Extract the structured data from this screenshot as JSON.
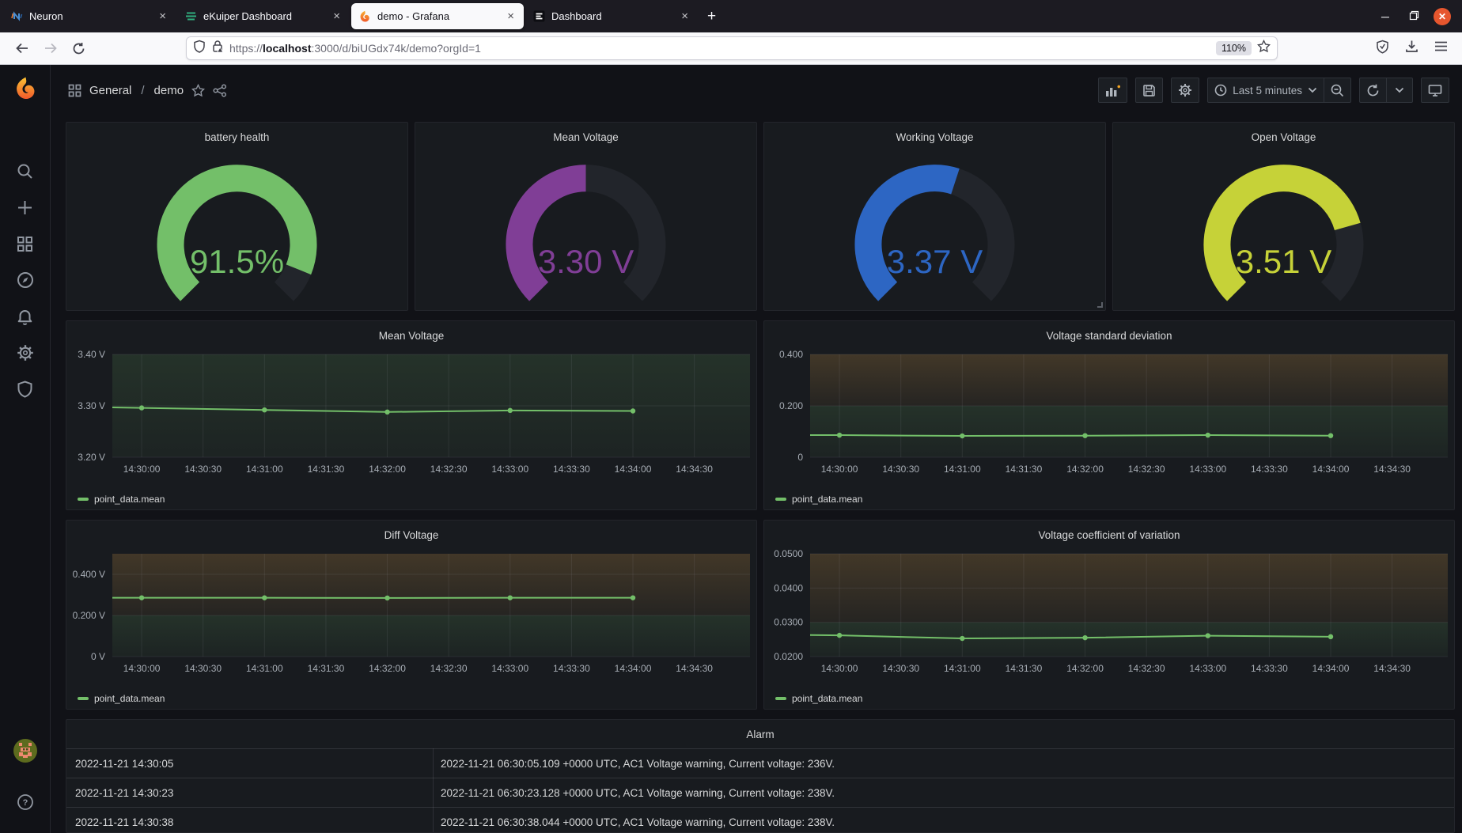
{
  "browser": {
    "tabs": [
      {
        "label": "Neuron",
        "icon": "neuron-favicon",
        "active": false
      },
      {
        "label": "eKuiper Dashboard",
        "icon": "ekuiper-favicon",
        "active": false
      },
      {
        "label": "demo - Grafana",
        "icon": "grafana-favicon",
        "active": true
      },
      {
        "label": "Dashboard",
        "icon": "dashboard-favicon",
        "active": false
      }
    ],
    "close_glyph": "×",
    "new_tab_glyph": "+",
    "url": {
      "scheme": "https://",
      "host": "localhost",
      "rest": ":3000/d/biUGdx74k/demo?orgId=1"
    },
    "zoom_badge": "110%"
  },
  "grafana": {
    "breadcrumb": {
      "folder": "General",
      "separator": "/",
      "dashboard": "demo"
    },
    "toolbar": {
      "time_range": "Last 5 minutes"
    },
    "sidebar_items": [
      "search",
      "create",
      "dashboards",
      "explore",
      "alerting",
      "configuration",
      "server-admin"
    ],
    "legend_label": "point_data.mean",
    "colors": {
      "green": "#73BF69",
      "purple": "#803E96",
      "blue": "#2D66C3",
      "yellow": "#C6D238",
      "track": "#22252b"
    }
  },
  "chart_data": [
    {
      "type": "gauge",
      "title": "battery health",
      "value": 91.5,
      "display": "91.5%",
      "min": 0,
      "max": 100,
      "color": "#73BF69"
    },
    {
      "type": "gauge",
      "title": "Mean Voltage",
      "value": 3.3,
      "display": "3.30 V",
      "min": 3.2,
      "max": 3.4,
      "color": "#803E96"
    },
    {
      "type": "gauge",
      "title": "Working Voltage",
      "value": 3.37,
      "display": "3.37 V",
      "min": 3.2,
      "max": 3.5,
      "color": "#2D66C3"
    },
    {
      "type": "gauge",
      "title": "Open Voltage",
      "value": 3.51,
      "display": "3.51 V",
      "min": 3.2,
      "max": 3.6,
      "color": "#C6D238"
    },
    {
      "type": "line",
      "title": "Mean Voltage",
      "ylabel": "",
      "y_domain": [
        3.2,
        3.4
      ],
      "y_ticks": [
        {
          "value": 3.2,
          "label": "3.20 V"
        },
        {
          "value": 3.3,
          "label": "3.30 V"
        },
        {
          "value": 3.4,
          "label": "3.40 V"
        }
      ],
      "x_ticks": [
        "14:30:00",
        "14:30:30",
        "14:31:00",
        "14:31:30",
        "14:32:00",
        "14:32:30",
        "14:33:00",
        "14:33:30",
        "14:34:00",
        "14:34:30"
      ],
      "threshold": null,
      "edge_value": 3.297,
      "points_x": [
        "14:30:00",
        "14:31:00",
        "14:32:00",
        "14:33:00",
        "14:34:00"
      ],
      "points_y": [
        3.296,
        3.292,
        3.288,
        3.291,
        3.29
      ],
      "series_name": "point_data.mean",
      "line_color": "#73BF69",
      "grid": true,
      "legend_position": "bottom-left"
    },
    {
      "type": "line",
      "title": "Voltage standard deviation",
      "y_domain": [
        0,
        0.4
      ],
      "y_ticks": [
        {
          "value": 0,
          "label": "0"
        },
        {
          "value": 0.2,
          "label": "0.200"
        },
        {
          "value": 0.4,
          "label": "0.400"
        }
      ],
      "x_ticks": [
        "14:30:00",
        "14:30:30",
        "14:31:00",
        "14:31:30",
        "14:32:00",
        "14:32:30",
        "14:33:00",
        "14:33:30",
        "14:34:00",
        "14:34:30"
      ],
      "threshold": 0.2,
      "edge_value": 0.086,
      "points_x": [
        "14:30:00",
        "14:31:00",
        "14:32:00",
        "14:33:00",
        "14:34:00"
      ],
      "points_y": [
        0.086,
        0.083,
        0.084,
        0.086,
        0.084
      ],
      "series_name": "point_data.mean",
      "line_color": "#73BF69",
      "grid": true,
      "legend_position": "bottom-left"
    },
    {
      "type": "line",
      "title": "Diff Voltage",
      "y_domain": [
        0,
        0.5
      ],
      "y_ticks": [
        {
          "value": 0,
          "label": "0 V"
        },
        {
          "value": 0.2,
          "label": "0.200 V"
        },
        {
          "value": 0.4,
          "label": "0.400 V"
        }
      ],
      "x_ticks": [
        "14:30:00",
        "14:30:30",
        "14:31:00",
        "14:31:30",
        "14:32:00",
        "14:32:30",
        "14:33:00",
        "14:33:30",
        "14:34:00",
        "14:34:30"
      ],
      "threshold": 0.2,
      "edge_value": 0.286,
      "points_x": [
        "14:30:00",
        "14:31:00",
        "14:32:00",
        "14:33:00",
        "14:34:00"
      ],
      "points_y": [
        0.286,
        0.286,
        0.285,
        0.286,
        0.286
      ],
      "series_name": "point_data.mean",
      "line_color": "#73BF69",
      "grid": true,
      "legend_position": "bottom-left"
    },
    {
      "type": "line",
      "title": "Voltage coefficient of variation",
      "y_domain": [
        0.02,
        0.05
      ],
      "y_ticks": [
        {
          "value": 0.02,
          "label": "0.0200"
        },
        {
          "value": 0.03,
          "label": "0.0300"
        },
        {
          "value": 0.04,
          "label": "0.0400"
        },
        {
          "value": 0.05,
          "label": "0.0500"
        }
      ],
      "x_ticks": [
        "14:30:00",
        "14:30:30",
        "14:31:00",
        "14:31:30",
        "14:32:00",
        "14:32:30",
        "14:33:00",
        "14:33:30",
        "14:34:00",
        "14:34:30"
      ],
      "threshold": 0.03,
      "edge_value": 0.0263,
      "points_x": [
        "14:30:00",
        "14:31:00",
        "14:32:00",
        "14:33:00",
        "14:34:00"
      ],
      "points_y": [
        0.0262,
        0.0253,
        0.0255,
        0.0261,
        0.0258
      ],
      "series_name": "point_data.mean",
      "line_color": "#73BF69",
      "grid": true,
      "legend_position": "bottom-left"
    },
    {
      "type": "table",
      "title": "Alarm",
      "rows": [
        {
          "time": "2022-11-21 14:30:05",
          "message": "2022-11-21 06:30:05.109 +0000 UTC, AC1 Voltage warning, Current voltage: 236V."
        },
        {
          "time": "2022-11-21 14:30:23",
          "message": "2022-11-21 06:30:23.128 +0000 UTC, AC1 Voltage warning, Current voltage: 238V."
        },
        {
          "time": "2022-11-21 14:30:38",
          "message": "2022-11-21 06:30:38.044 +0000 UTC, AC1 Voltage warning, Current voltage: 238V."
        }
      ]
    }
  ]
}
